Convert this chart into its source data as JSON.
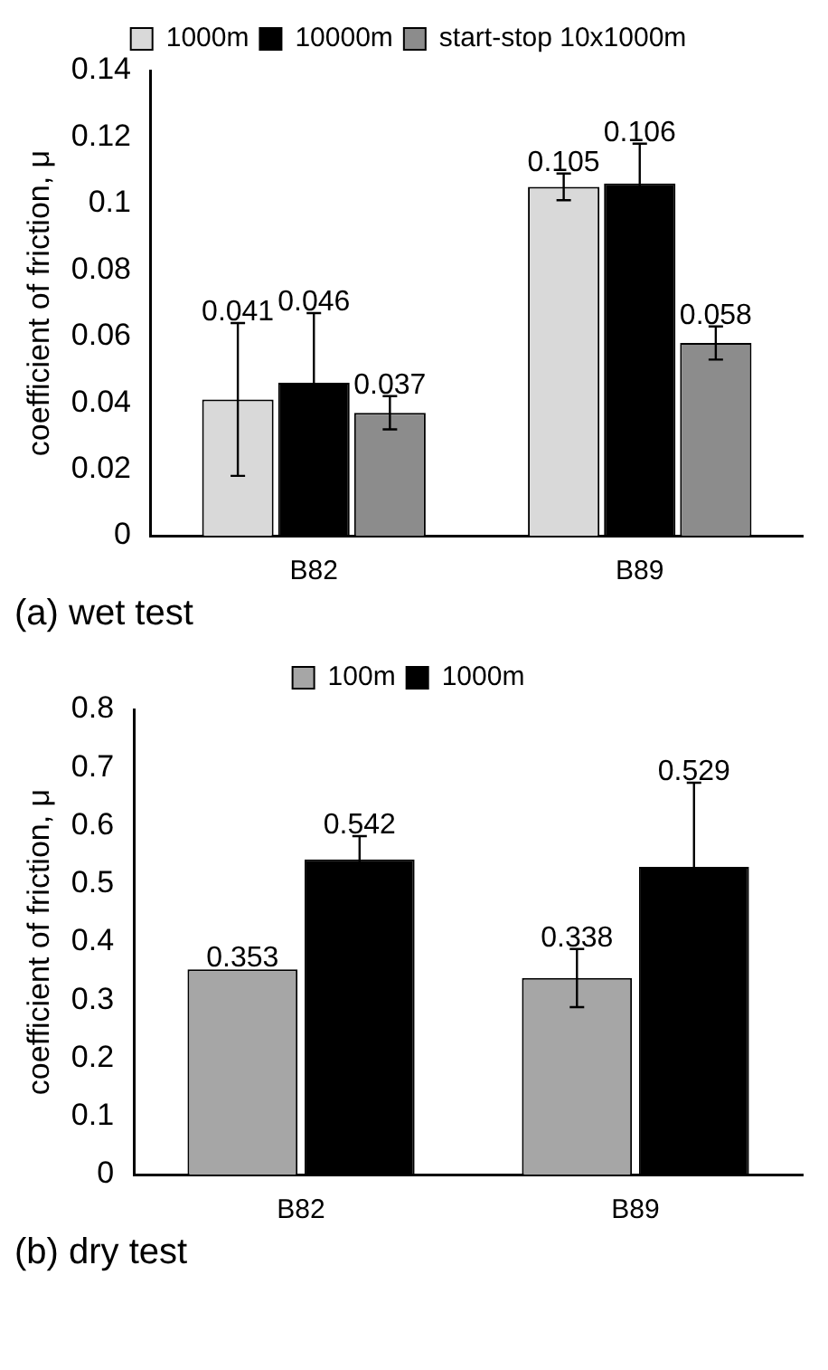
{
  "chart_data": [
    {
      "type": "bar",
      "categories": [
        "B82",
        "B89"
      ],
      "ylabel": "coefficient of friction, μ",
      "ylim": [
        0,
        0.14
      ],
      "yticks": [
        0,
        0.02,
        0.04,
        0.06,
        0.08,
        0.1,
        0.12,
        0.14
      ],
      "grid": false,
      "legend": "top",
      "data_labels": true,
      "annotations": [
        "(a) wet test"
      ],
      "series": [
        {
          "name": "1000m",
          "color": "#d9d9d9",
          "values": [
            0.041,
            0.105
          ],
          "errors": [
            0.023,
            0.004
          ]
        },
        {
          "name": "10000m",
          "color": "#000000",
          "values": [
            0.046,
            0.106
          ],
          "errors": [
            0.021,
            0.012
          ]
        },
        {
          "name": "start-stop 10x1000m",
          "color": "#8c8c8c",
          "values": [
            0.037,
            0.058
          ],
          "errors": [
            0.005,
            0.005
          ]
        }
      ]
    },
    {
      "type": "bar",
      "categories": [
        "B82",
        "B89"
      ],
      "ylabel": "coefficient of friction, μ",
      "ylim": [
        0,
        0.8
      ],
      "yticks": [
        0,
        0.1,
        0.2,
        0.3,
        0.4,
        0.5,
        0.6,
        0.7,
        0.8
      ],
      "grid": false,
      "legend": "top",
      "data_labels": true,
      "annotations": [
        "(b) dry test"
      ],
      "series": [
        {
          "name": "100m",
          "color": "#a6a6a6",
          "values": [
            0.353,
            0.338
          ],
          "errors": [
            null,
            0.05
          ]
        },
        {
          "name": "1000m",
          "color": "#000000",
          "values": [
            0.542,
            0.529
          ],
          "errors": [
            0.04,
            0.145
          ]
        }
      ]
    }
  ]
}
